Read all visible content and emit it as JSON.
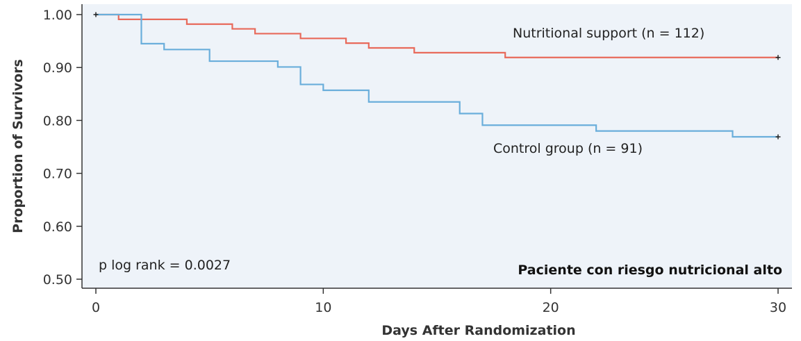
{
  "chart_data": {
    "type": "line",
    "step": true,
    "title": "",
    "xlabel": "Days After Randomization",
    "ylabel": "Proportion of Survivors",
    "xlim": [
      0,
      30
    ],
    "ylim": [
      0.5,
      1.0
    ],
    "xticks": [
      0,
      10,
      20,
      30
    ],
    "yticks": [
      0.5,
      0.6,
      0.7,
      0.8,
      0.9,
      1.0
    ],
    "ytick_labels": [
      "0.50",
      "0.60",
      "0.70",
      "0.80",
      "0.90",
      "1.00"
    ],
    "grid": false,
    "background_color": "#eef3f9",
    "series": [
      {
        "name": "Nutritional support (n = 112)",
        "color": "#e8695a",
        "x": [
          0,
          1,
          4,
          6,
          7,
          9,
          11,
          12,
          14,
          18,
          30
        ],
        "y": [
          1.0,
          0.991,
          0.982,
          0.973,
          0.964,
          0.955,
          0.946,
          0.937,
          0.928,
          0.919,
          0.919
        ]
      },
      {
        "name": "Control group (n = 91)",
        "color": "#6aaedb",
        "x": [
          0,
          2,
          3,
          5,
          8,
          9,
          10,
          12,
          16,
          17,
          22,
          28,
          30
        ],
        "y": [
          1.0,
          0.945,
          0.934,
          0.912,
          0.901,
          0.868,
          0.857,
          0.835,
          0.813,
          0.791,
          0.78,
          0.769,
          0.769
        ]
      }
    ],
    "annotations": {
      "p_value": "p log rank = 0.0027",
      "subgroup": "Paciente con riesgo nutricional alto"
    }
  }
}
